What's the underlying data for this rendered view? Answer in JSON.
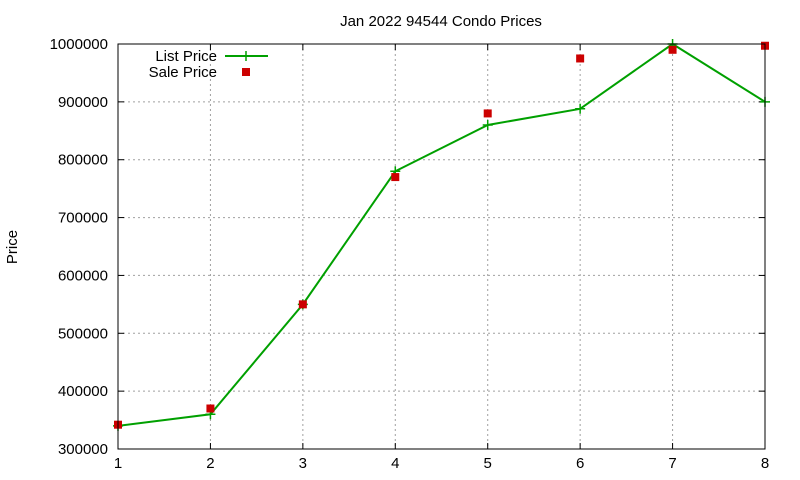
{
  "chart_data": {
    "type": "line",
    "title": "Jan 2022 94544 Condo Prices",
    "xlabel": "",
    "ylabel": "Price",
    "xlim": [
      1,
      8
    ],
    "ylim": [
      300000,
      1000000
    ],
    "x_ticks": [
      "1",
      "2",
      "3",
      "4",
      "5",
      "6",
      "7",
      "8"
    ],
    "y_ticks": [
      "300000",
      "400000",
      "500000",
      "600000",
      "700000",
      "800000",
      "900000",
      "1000000"
    ],
    "grid": true,
    "legend_position": "top-left",
    "series": [
      {
        "name": "List Price",
        "style": "line with plus markers",
        "color": "#00a000",
        "x": [
          1,
          2,
          3,
          4,
          5,
          6,
          7,
          8
        ],
        "values": [
          340000,
          360000,
          550000,
          780000,
          860000,
          888000,
          1000000,
          900000
        ]
      },
      {
        "name": "Sale Price",
        "style": "square markers",
        "color": "#cc0000",
        "x": [
          1,
          2,
          3,
          4,
          5,
          6,
          7,
          8
        ],
        "values": [
          342000,
          370000,
          550000,
          770000,
          880000,
          975000,
          990000,
          997000
        ]
      }
    ]
  }
}
